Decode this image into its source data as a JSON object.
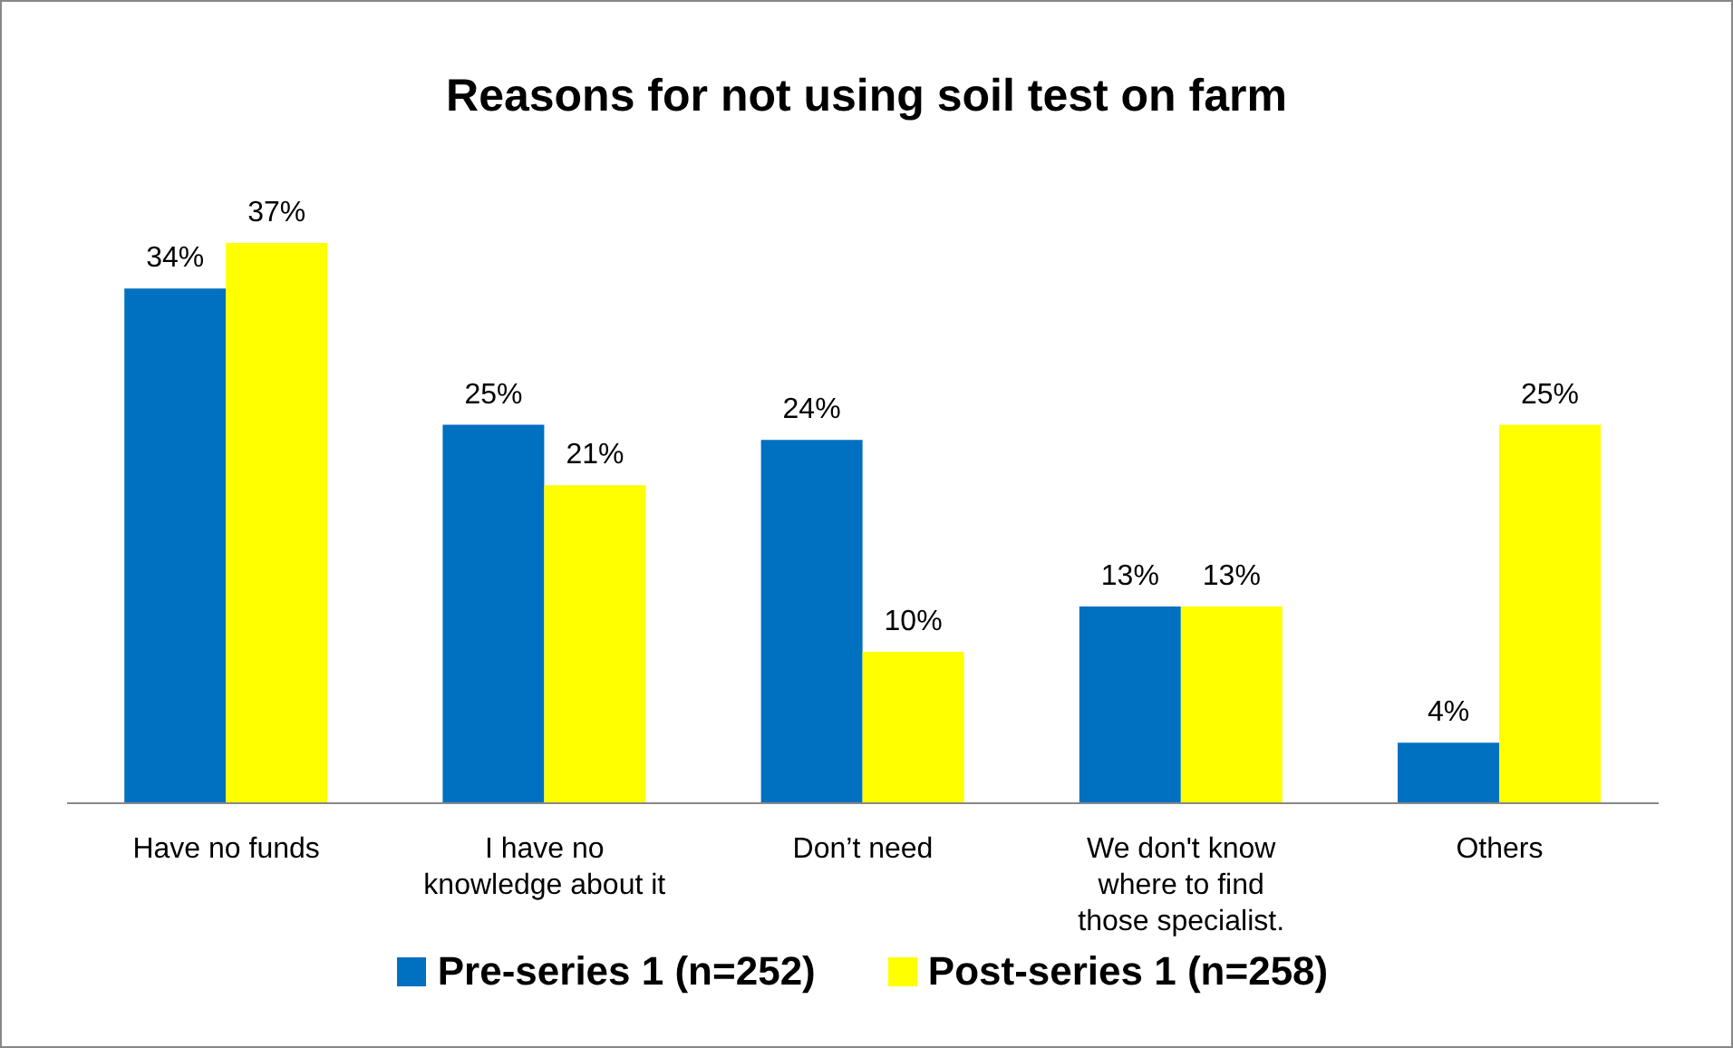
{
  "chart_data": {
    "type": "bar",
    "title": "Reasons for not using soil test on farm",
    "categories": [
      "Have no funds",
      "I have no knowledge about it",
      "Don’t need",
      "We don't know where to find those specialist.",
      "Others"
    ],
    "series": [
      {
        "name": "Pre-series 1 (n=252)",
        "color": "#0070c0",
        "values": [
          34,
          25,
          24,
          13,
          4
        ],
        "value_labels": [
          "34%",
          "25%",
          "24%",
          "13%",
          "4%"
        ]
      },
      {
        "name": "Post-series 1 (n=258)",
        "color": "#ffff00",
        "values": [
          37,
          21,
          10,
          13,
          25
        ],
        "value_labels": [
          "37%",
          "21%",
          "10%",
          "13%",
          "25%"
        ]
      }
    ],
    "grid": false,
    "legend": "bottom"
  }
}
